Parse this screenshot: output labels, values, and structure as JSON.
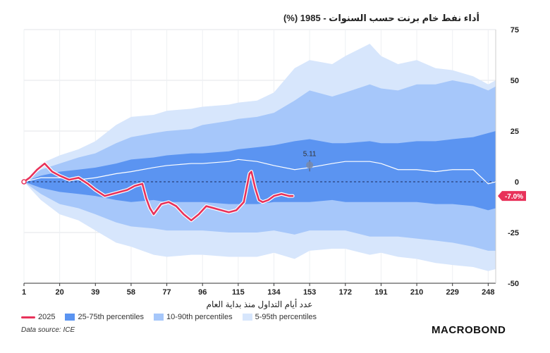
{
  "title": "أداء نفط خام برنت حسب السنوات - 1985 (%)",
  "colors": {
    "band_5_95": "#d7e6fc",
    "band_10_90": "#a6c7fa",
    "band_25_75": "#5b94f1",
    "series_2025": "#e8325a",
    "median": "#ffffff",
    "zero_line": "#1f2d5a"
  },
  "legend": {
    "s2025": "2025",
    "p25_75": "25-75th percentiles",
    "p10_90": "10-90th percentiles",
    "p5_95": "5-95th percentiles"
  },
  "source": "Data source: ICE",
  "logo": "MACROBOND",
  "chart_data": {
    "type": "area",
    "xlabel": "عدد أيام التداول منذ بداية العام",
    "ylabel": "",
    "xlim": [
      1,
      252
    ],
    "ylim": [
      -50,
      75
    ],
    "x_ticks": [
      1,
      20,
      39,
      58,
      77,
      96,
      115,
      134,
      153,
      172,
      191,
      210,
      229,
      248
    ],
    "y_ticks": [
      75,
      50,
      25,
      0,
      -25,
      -50
    ],
    "x": [
      1,
      10,
      20,
      30,
      39,
      50,
      58,
      70,
      77,
      90,
      96,
      110,
      115,
      125,
      134,
      145,
      153,
      165,
      172,
      185,
      191,
      200,
      210,
      220,
      229,
      240,
      248,
      252
    ],
    "series": [
      {
        "name": "5-95th percentiles",
        "upper": [
          0,
          9,
          13,
          16,
          20,
          28,
          32,
          33,
          35,
          36,
          37,
          38,
          39,
          40,
          44,
          56,
          60,
          58,
          62,
          68,
          62,
          58,
          60,
          56,
          55,
          52,
          48,
          50
        ],
        "lower": [
          0,
          -9,
          -16,
          -19,
          -24,
          -30,
          -32,
          -36,
          -37,
          -36,
          -36,
          -37,
          -37,
          -37,
          -35,
          -38,
          -34,
          -33,
          -33,
          -36,
          -35,
          -37,
          -38,
          -40,
          -41,
          -42,
          -44,
          -43
        ]
      },
      {
        "name": "10-90th percentiles",
        "upper": [
          0,
          6,
          9,
          12,
          14,
          19,
          22,
          24,
          25,
          26,
          28,
          30,
          31,
          32,
          34,
          40,
          45,
          42,
          44,
          48,
          46,
          45,
          48,
          48,
          50,
          48,
          45,
          47
        ]
      },
      {
        "name": "10-90th percentiles lower",
        "lower": [
          0,
          -6,
          -11,
          -13,
          -16,
          -20,
          -22,
          -23,
          -24,
          -24,
          -24,
          -25,
          -25,
          -25,
          -24,
          -26,
          -24,
          -24,
          -24,
          -27,
          -27,
          -27,
          -28,
          -29,
          -30,
          -32,
          -34,
          -34
        ]
      },
      {
        "name": "25-75th percentiles",
        "upper": [
          0,
          3,
          5,
          6,
          7,
          9,
          11,
          12,
          13,
          14,
          14,
          15,
          16,
          17,
          18,
          20,
          21,
          19,
          19,
          20,
          19,
          19,
          20,
          20,
          21,
          22,
          24,
          25
        ]
      },
      {
        "name": "25-75th percentiles lower",
        "lower": [
          0,
          -3,
          -5,
          -6,
          -7,
          -9,
          -10,
          -9,
          -10,
          -10,
          -10,
          -11,
          -11,
          -11,
          -10,
          -10,
          -10,
          -9,
          -10,
          -10,
          -10,
          -10,
          -10,
          -11,
          -11,
          -12,
          -14,
          -13
        ]
      },
      {
        "name": "median",
        "values": [
          0,
          2,
          2,
          1,
          2,
          4,
          5,
          7,
          8,
          9,
          9,
          10,
          11,
          10,
          8,
          6,
          7,
          9,
          10,
          10,
          9,
          6,
          6,
          5,
          6,
          6,
          -1,
          0
        ]
      }
    ],
    "series_2025": {
      "name": "2025",
      "x": [
        1,
        4,
        8,
        12,
        16,
        20,
        25,
        30,
        35,
        39,
        44,
        48,
        52,
        56,
        60,
        64,
        66,
        68,
        70,
        74,
        78,
        82,
        86,
        90,
        94,
        98,
        102,
        106,
        110,
        114,
        118,
        121,
        122,
        124,
        126,
        128,
        131,
        134,
        138,
        142,
        144
      ],
      "values": [
        0,
        2,
        6,
        9,
        5,
        3,
        1,
        2,
        -1,
        -4,
        -7,
        -6,
        -5,
        -4,
        -2,
        -1,
        -8,
        -13,
        -16,
        -11,
        -10,
        -12,
        -16,
        -19,
        -16,
        -12,
        -13,
        -14,
        -15,
        -14,
        -10,
        4,
        5,
        -3,
        -9,
        -10,
        -9,
        -7,
        -6,
        -7,
        -7
      ]
    },
    "annotations": [
      {
        "text": "5.11",
        "x": 153,
        "y": 5.11
      },
      {
        "text": "-7.0%",
        "x": 252,
        "y": -7.0
      }
    ]
  }
}
